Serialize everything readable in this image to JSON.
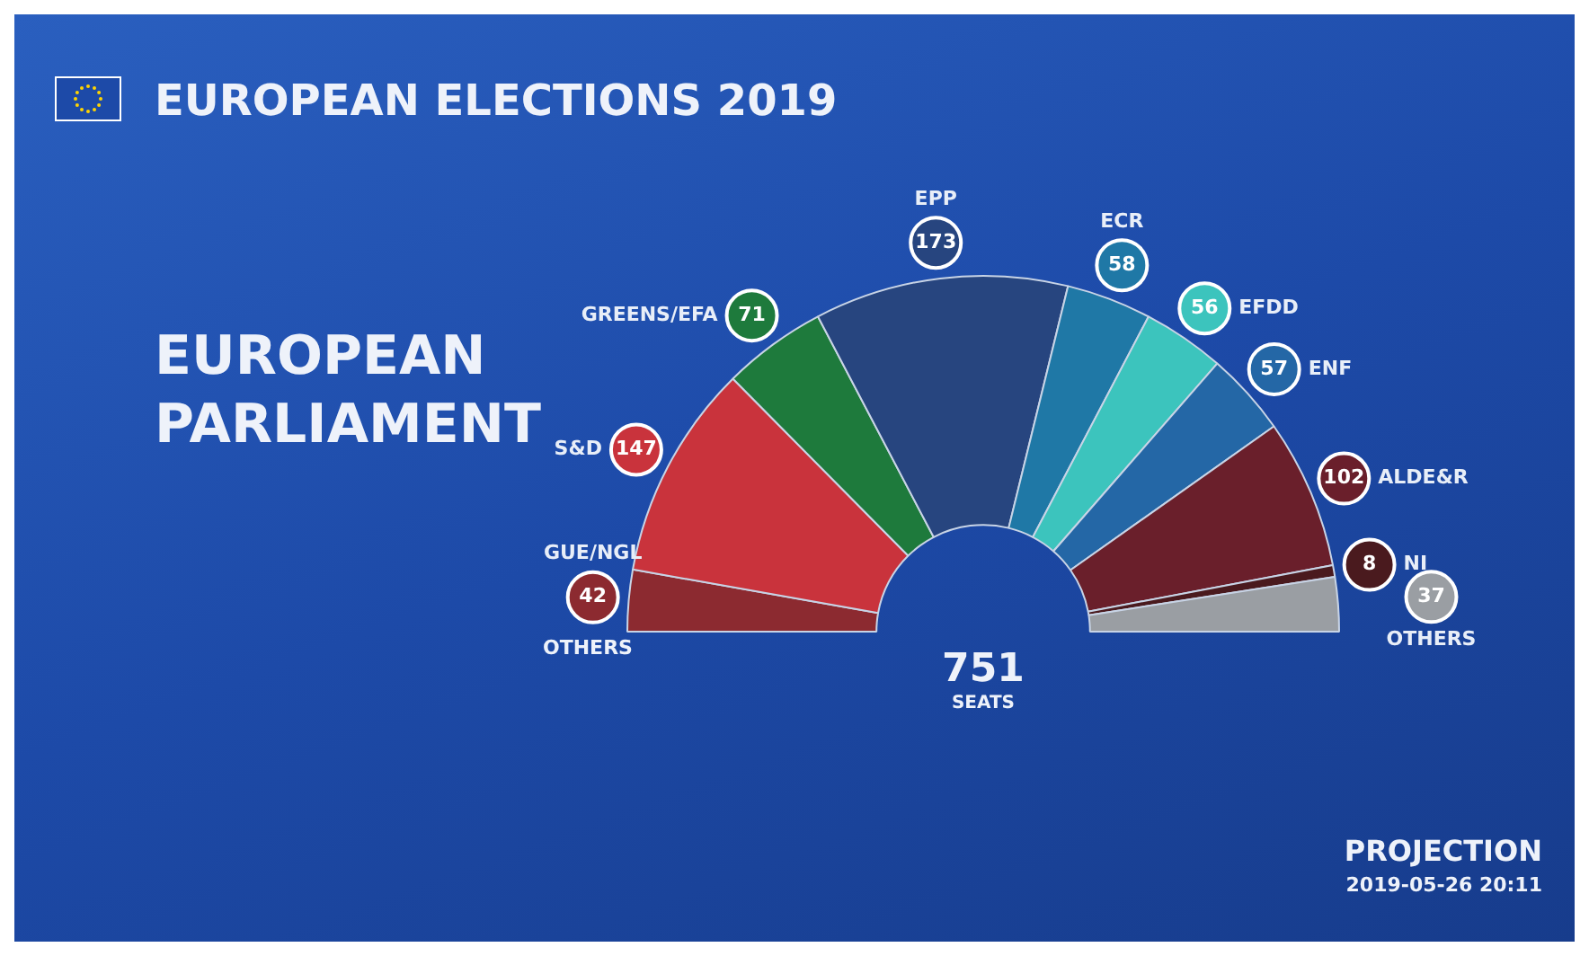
{
  "chart_data": {
    "type": "donut",
    "title": "EUROPEAN ELECTIONS 2019",
    "subtitle": "EUROPEAN PARLIAMENT",
    "categories": [
      "GUE/NGL",
      "S&D",
      "GREENS/EFA",
      "EPP",
      "ECR",
      "EFDD",
      "ENF",
      "ALDE&R",
      "NI",
      "OTHERS"
    ],
    "values": [
      42,
      147,
      71,
      173,
      58,
      56,
      57,
      102,
      8,
      37
    ],
    "colors": [
      "#8c2a30",
      "#c9333c",
      "#1e7a3c",
      "#27457f",
      "#1f78a6",
      "#3cc4bd",
      "#2467a6",
      "#6a1f2b",
      "#4a1a1e",
      "#9a9ea3"
    ],
    "data_labels": true,
    "legend": false,
    "annotations": [
      "OTHERS",
      "751",
      "SEATS",
      "PROJECTION",
      "2019-05-26 20:11"
    ]
  }
}
